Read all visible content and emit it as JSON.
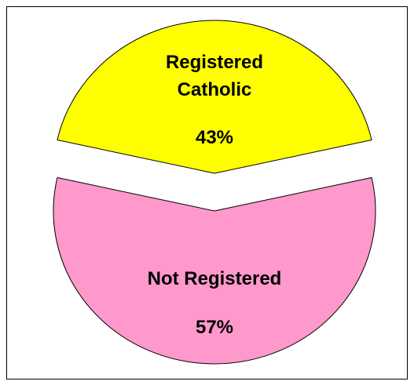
{
  "chart_data": {
    "type": "pie",
    "categories": [
      "Registered Catholic",
      "Not Registered"
    ],
    "values": [
      43,
      57
    ],
    "value_labels": [
      "43%",
      "57%"
    ],
    "colors": [
      "#ffff00",
      "#ff99cc"
    ],
    "exploded": true
  }
}
